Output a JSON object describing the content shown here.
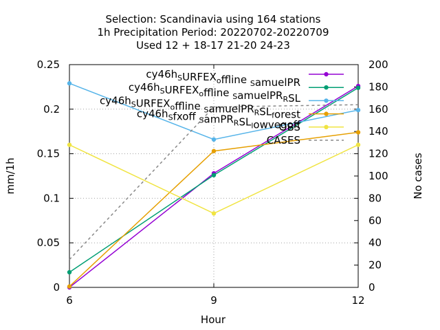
{
  "title_lines": [
    "Selection: Scandinavia using   164 stations",
    "1h Precipitation   Period: 20220702-20220709",
    "Used  12 + 18-17 21-20 24-23"
  ],
  "chart_data": {
    "type": "line",
    "xlabel": "Hour",
    "ylabel": "mm/1h",
    "y2label": "No cases",
    "x": [
      6,
      9,
      12
    ],
    "xlim": [
      6,
      12
    ],
    "ylim": [
      0,
      0.25
    ],
    "y2lim": [
      0,
      200
    ],
    "xticks": [
      "6",
      "9",
      "12"
    ],
    "yticks": [
      "0",
      "0.05",
      "0.1",
      "0.15",
      "0.2",
      "0.25"
    ],
    "y2ticks": [
      "0",
      "20",
      "40",
      "60",
      "80",
      "100",
      "120",
      "140",
      "160",
      "180",
      "200"
    ],
    "grid": true,
    "legend_position": "top-right",
    "series": [
      {
        "name": "cy46h_SURFEX_offline_samuelPR",
        "legend": [
          [
            "cy46h",
            ""
          ],
          [
            "S",
            "sub"
          ],
          [
            "URFEX",
            ""
          ],
          [
            "o",
            "sub"
          ],
          [
            "ffline ",
            ""
          ],
          [
            "S",
            "sub"
          ],
          [
            "amuelPR",
            ""
          ]
        ],
        "color": "#9400d3",
        "axis": "y",
        "values": [
          0.0,
          0.128,
          0.226
        ]
      },
      {
        "name": "cy46h_SURFEX_offline_samuelPR_RSL",
        "legend": [
          [
            "cy46h",
            ""
          ],
          [
            "S",
            "sub"
          ],
          [
            "URFEX",
            ""
          ],
          [
            "o",
            "sub"
          ],
          [
            "ffline ",
            ""
          ],
          [
            "S",
            "sub"
          ],
          [
            "amuelPR",
            ""
          ],
          [
            "R",
            "sub"
          ],
          [
            "SL",
            ""
          ]
        ],
        "color": "#009e73",
        "axis": "y",
        "values": [
          0.017,
          0.126,
          0.224
        ]
      },
      {
        "name": "cy46h_SURFEX_offline_samuelPR_RSL_forest",
        "legend": [
          [
            "cy46h",
            ""
          ],
          [
            "S",
            "sub"
          ],
          [
            "URFEX",
            ""
          ],
          [
            "o",
            "sub"
          ],
          [
            "ffline ",
            ""
          ],
          [
            "S",
            "sub"
          ],
          [
            "amuelPR",
            ""
          ],
          [
            "R",
            "sub"
          ],
          [
            "SL",
            ""
          ],
          [
            "f",
            "sub"
          ],
          [
            "orest",
            ""
          ]
        ],
        "color": "#56b4e9",
        "axis": "y",
        "values": [
          0.229,
          0.166,
          0.199
        ]
      },
      {
        "name": "cy46h_sfxoff_samPR_RSL_lowvegoff",
        "legend": [
          [
            "cy46h",
            ""
          ],
          [
            "S",
            "sub"
          ],
          [
            "fxoff ",
            ""
          ],
          [
            "S",
            "sub"
          ],
          [
            "amPR",
            ""
          ],
          [
            "R",
            "sub"
          ],
          [
            "SL",
            ""
          ],
          [
            "l",
            "sub"
          ],
          [
            "owvegoff",
            ""
          ]
        ],
        "color": "#e69f00",
        "axis": "y",
        "values": [
          0.001,
          0.153,
          0.174
        ]
      },
      {
        "name": "OBS",
        "legend": [
          [
            "OBS",
            ""
          ]
        ],
        "color": "#f0e442",
        "axis": "y",
        "values": [
          0.16,
          0.083,
          0.16
        ]
      },
      {
        "name": "CASES",
        "legend": [
          [
            "CASES",
            ""
          ]
        ],
        "color": "#888888",
        "axis": "y2",
        "dashed": true,
        "values": [
          25,
          162,
          164
        ]
      }
    ]
  }
}
